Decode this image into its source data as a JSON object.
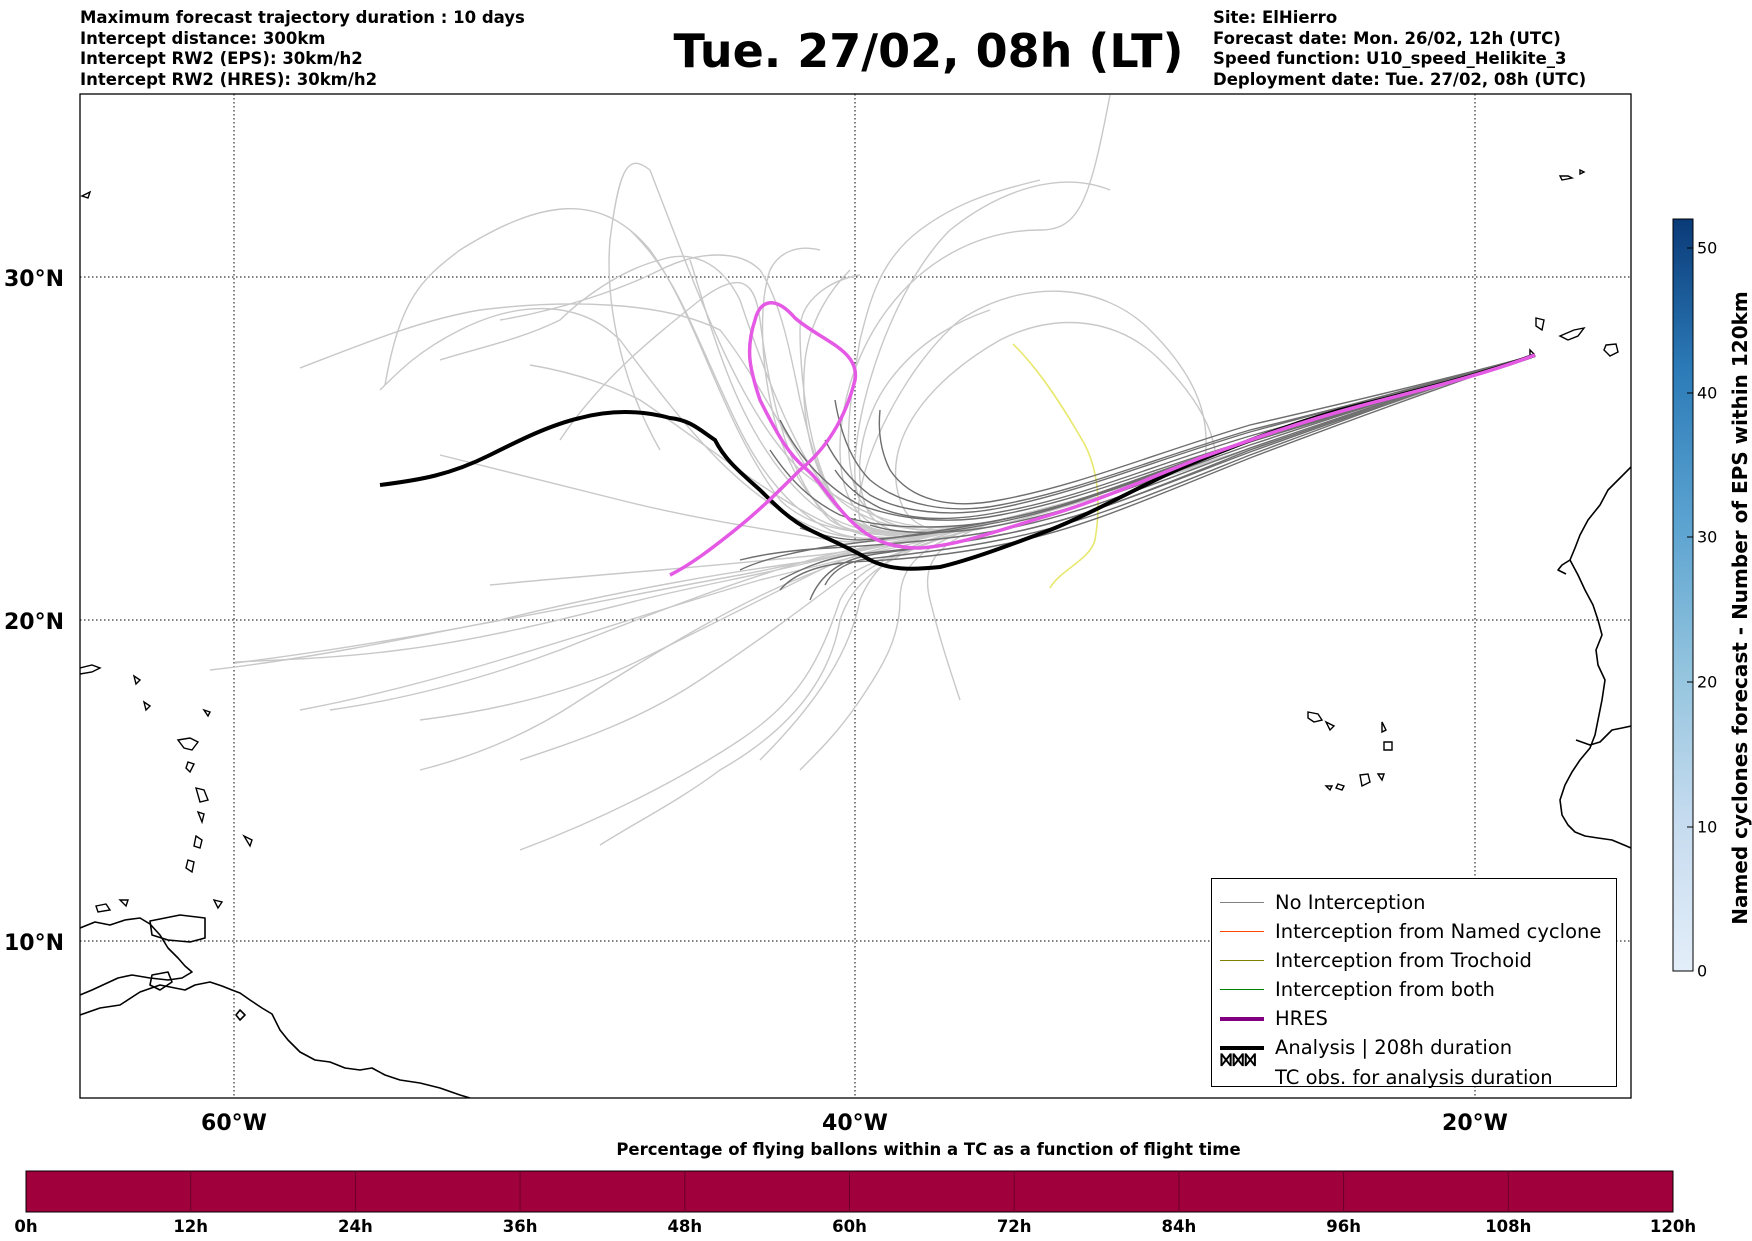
{
  "header": {
    "left_lines": [
      "Maximum forecast trajectory duration : 10 days",
      "Intercept distance: 300km",
      "Intercept RW2 (EPS):  30km/h2",
      "Intercept RW2 (HRES): 30km/h2"
    ],
    "right_lines": [
      "Site: ElHierro",
      "Forecast date: Mon. 26/02, 12h (UTC)",
      "Speed function: U10_speed_Helikite_3",
      "Deployment date: Tue. 27/02, 08h (UTC)"
    ],
    "title": "Tue. 27/02, 08h (LT)"
  },
  "map": {
    "lat_labels": [
      "30°N",
      "20°N",
      "10°N"
    ],
    "lon_labels": [
      "60°W",
      "40°W",
      "20°W"
    ],
    "colors": {
      "eps_tracks": "#c8c8c8",
      "no_interception": "#6e6e6e",
      "hres": "#e45ae4",
      "hres_legend": "#800080",
      "analysis": "#000000",
      "named_cyclone": "#ff4500",
      "trochoid": "#808000",
      "both": "#008000",
      "yellow_track": "#e8e870"
    }
  },
  "legend": {
    "items": [
      {
        "label": "No Interception",
        "color": "#808080",
        "width": 1.2
      },
      {
        "label": "Interception from Named cyclone",
        "color": "#ff4500",
        "width": 1.2
      },
      {
        "label": "Interception from Trochoid",
        "color": "#808000",
        "width": 1.2
      },
      {
        "label": "Interception from both",
        "color": "#008000",
        "width": 1.2
      },
      {
        "label": "HRES",
        "color": "#800080",
        "width": 4
      },
      {
        "label": "Analysis | 208h duration",
        "color": "#000000",
        "width": 4
      }
    ],
    "tc_obs_label": "TC obs. for analysis duration",
    "tc_obs_symbol": "ᢂᢂᢂ"
  },
  "colorbar_vertical": {
    "label": "Named cyclones forecast - Number of EPS within 120km",
    "ticks": [
      "0",
      "10",
      "20",
      "30",
      "40",
      "50"
    ],
    "range": [
      0,
      52
    ],
    "color_low": "#e3eef9",
    "color_high": "#0a3a78"
  },
  "colorbar_horizontal": {
    "title": "Percentage of flying ballons within a TC as a function of flight time",
    "ticks": [
      "0h",
      "12h",
      "24h",
      "36h",
      "48h",
      "60h",
      "72h",
      "84h",
      "96h",
      "108h",
      "120h"
    ],
    "fill_color": "#a0003c"
  }
}
